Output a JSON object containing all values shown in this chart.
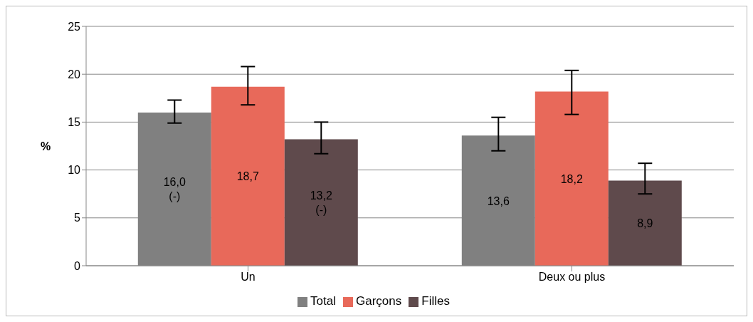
{
  "chart_data": {
    "type": "bar",
    "ylabel": "%",
    "categories": [
      "Un",
      "Deux ou plus"
    ],
    "series": [
      {
        "name": "Total",
        "color": "#808080",
        "values": [
          16.0,
          13.6
        ],
        "errors": [
          [
            14.9,
            17.3
          ],
          [
            12.0,
            15.5
          ]
        ],
        "value_labels": [
          "16,0\n(-)",
          "13,6"
        ]
      },
      {
        "name": "Garçons",
        "color": "#e8695a",
        "values": [
          18.7,
          18.2
        ],
        "errors": [
          [
            16.8,
            20.8
          ],
          [
            15.8,
            20.4
          ]
        ],
        "value_labels": [
          "18,7",
          "18,2"
        ]
      },
      {
        "name": "Filles",
        "color": "#5f4a4c",
        "values": [
          13.2,
          8.9
        ],
        "errors": [
          [
            11.7,
            15.0
          ],
          [
            7.5,
            10.7
          ]
        ],
        "value_labels": [
          "13,2\n(-)",
          "8,9"
        ]
      }
    ],
    "ylim": [
      0,
      25
    ],
    "yticks": [
      0,
      5,
      10,
      15,
      20,
      25
    ],
    "grid": "y",
    "legend": "bottom"
  }
}
